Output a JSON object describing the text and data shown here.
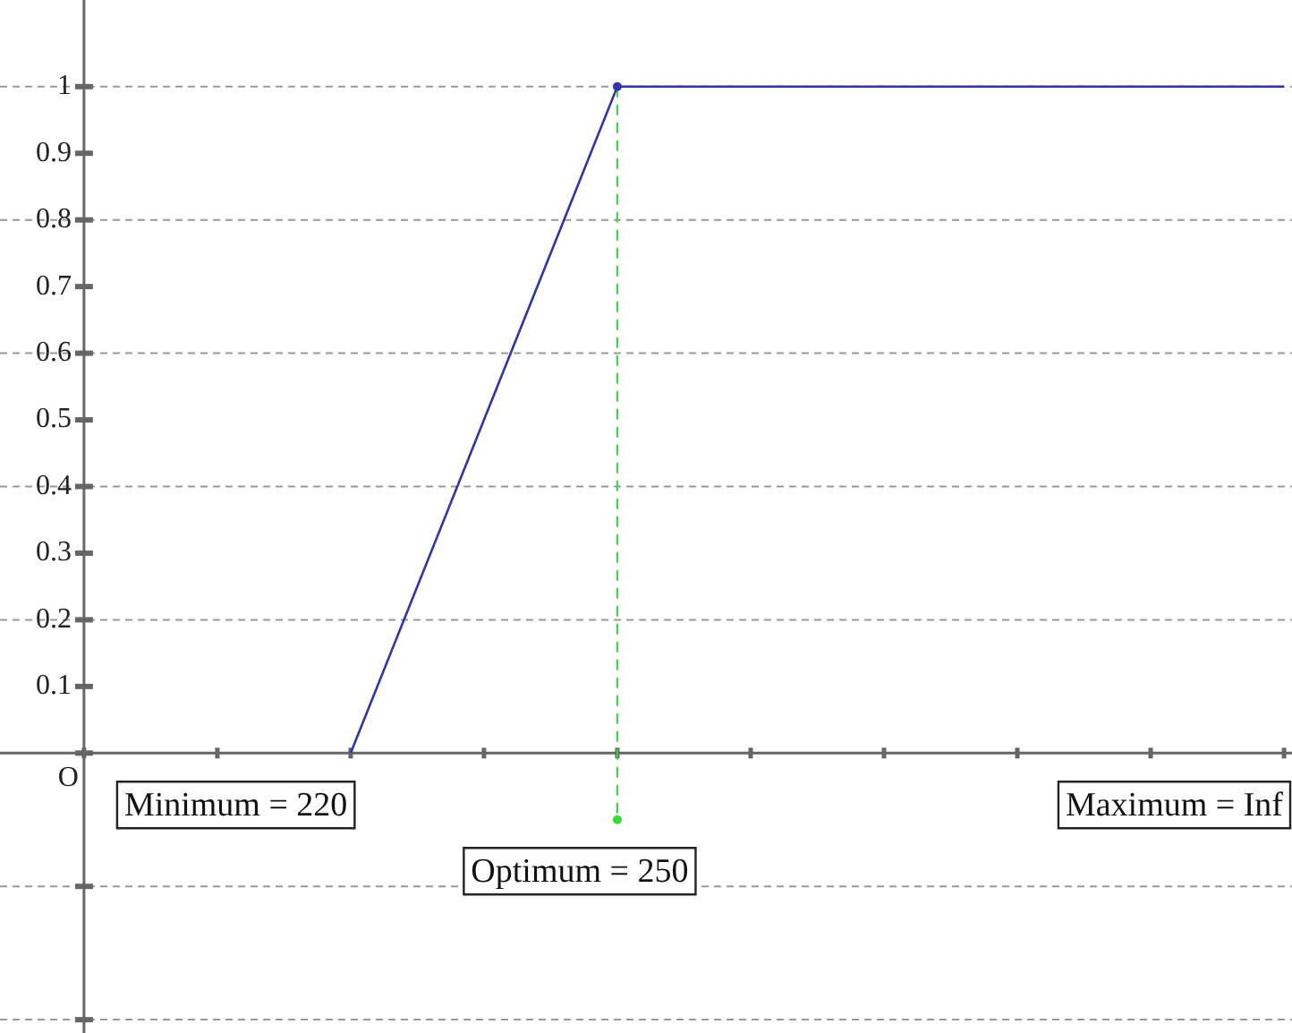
{
  "chart_data": {
    "type": "line",
    "categories": [
      null,
      null,
      null,
      null,
      null,
      null,
      null,
      null,
      null,
      null
    ],
    "series": [
      {
        "color": "#3333aa",
        "values": [
          null,
          null,
          0,
          0.5,
          1,
          1,
          1,
          1,
          1,
          1
        ]
      }
    ],
    "ylim": [
      -0.42,
      1.13
    ],
    "yticks": [
      {
        "value": -0.4,
        "label": null
      },
      {
        "value": -0.2,
        "label": null
      },
      {
        "value": 0,
        "label": null
      },
      0.1,
      0.2,
      0.3,
      0.4,
      0.5,
      0.6,
      0.7,
      0.8,
      0.9,
      1
    ],
    "grid": "y",
    "annotations": [
      "O",
      "Minimum = 220",
      "Optimum = 250",
      "Maximum = Inf"
    ],
    "tick_labels": "y",
    "legend": false,
    "marker": "none",
    "line_style": "solid"
  }
}
